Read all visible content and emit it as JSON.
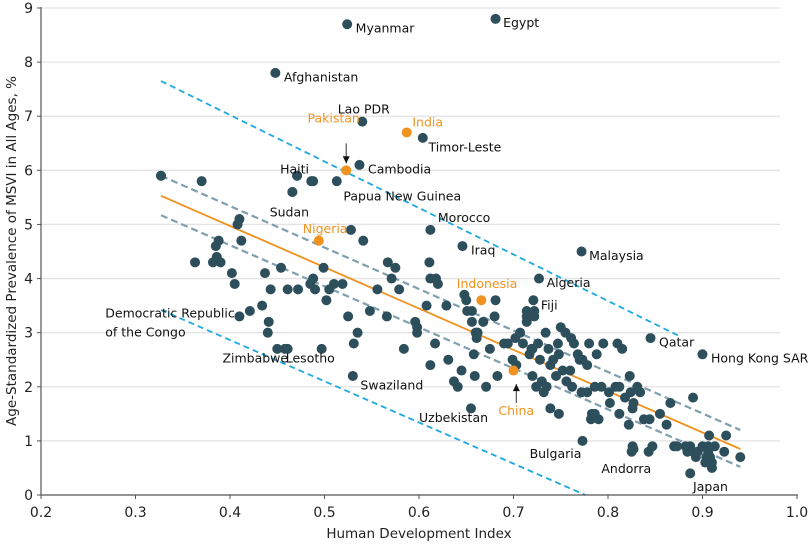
{
  "chart_data": {
    "type": "scatter",
    "title": "",
    "xlabel": "Human Development Index",
    "ylabel": "Age-Standardized Prevalence of MSVI in All Ages, %",
    "xlim": [
      0.2,
      1.0
    ],
    "ylim": [
      0,
      9
    ],
    "xticks": [
      "0.2",
      "0.3",
      "0.4",
      "0.5",
      "0.6",
      "0.7",
      "0.8",
      "0.9",
      "1.0"
    ],
    "yticks": [
      "0",
      "1",
      "2",
      "3",
      "4",
      "5",
      "6",
      "7",
      "8",
      "9"
    ],
    "grid": "horizontal",
    "colors": {
      "points": "#2d4f5c",
      "highlight": "#f0921e",
      "regression": "#f0921e",
      "confidence_band": "#7f9fae",
      "prediction_band": "#1ea8e0",
      "grid": "#e3e3e3",
      "axis": "#555555"
    },
    "regression_line": {
      "x": [
        0.327,
        0.94
      ],
      "y": [
        5.53,
        0.85
      ]
    },
    "confidence_band": {
      "upper": {
        "x": [
          0.327,
          0.94
        ],
        "y": [
          5.9,
          1.2
        ]
      },
      "lower": {
        "x": [
          0.327,
          0.94
        ],
        "y": [
          5.17,
          0.52
        ]
      }
    },
    "prediction_band": {
      "upper": {
        "x": [
          0.327,
          0.874
        ],
        "y": [
          7.65,
          2.95
        ]
      },
      "lower": {
        "x": [
          0.327,
          0.776
        ],
        "y": [
          3.42,
          0.0
        ]
      }
    },
    "labeled_points": [
      {
        "name": "Myanmar",
        "x": 0.524,
        "y": 8.7,
        "highlight": false
      },
      {
        "name": "Egypt",
        "x": 0.681,
        "y": 8.8,
        "highlight": false
      },
      {
        "name": "Afghanistan",
        "x": 0.448,
        "y": 7.8,
        "highlight": false
      },
      {
        "name": "Lao PDR",
        "x": 0.54,
        "y": 6.9,
        "highlight": false
      },
      {
        "name": "India",
        "x": 0.587,
        "y": 6.7,
        "highlight": true
      },
      {
        "name": "Timor-Leste",
        "x": 0.604,
        "y": 6.6,
        "highlight": false
      },
      {
        "name": "Pakistan",
        "x": 0.523,
        "y": 6.0,
        "highlight": true
      },
      {
        "name": "Cambodia",
        "x": 0.537,
        "y": 6.1,
        "highlight": false
      },
      {
        "name": "Haiti",
        "x": 0.471,
        "y": 5.9,
        "highlight": false
      },
      {
        "name": "Papua New Guinea",
        "x": 0.513,
        "y": 5.8,
        "highlight": false
      },
      {
        "name": "Sudan",
        "x": 0.466,
        "y": 5.6,
        "highlight": false
      },
      {
        "name": "Nigeria",
        "x": 0.494,
        "y": 4.7,
        "highlight": true
      },
      {
        "name": "Morocco",
        "x": 0.612,
        "y": 4.9,
        "highlight": false
      },
      {
        "name": "Iraq",
        "x": 0.646,
        "y": 4.6,
        "highlight": false
      },
      {
        "name": "Malaysia",
        "x": 0.772,
        "y": 4.5,
        "highlight": false
      },
      {
        "name": "Algeria",
        "x": 0.727,
        "y": 4.0,
        "highlight": false
      },
      {
        "name": "Indonesia",
        "x": 0.666,
        "y": 3.6,
        "highlight": true
      },
      {
        "name": "Fiji",
        "x": 0.721,
        "y": 3.6,
        "highlight": false
      },
      {
        "name": "Qatar",
        "x": 0.845,
        "y": 2.9,
        "highlight": false
      },
      {
        "name": "Hong Kong SAR",
        "x": 0.9,
        "y": 2.6,
        "highlight": false
      },
      {
        "name": "Democratic Republic of the Congo",
        "x": 0.327,
        "y": 5.9,
        "highlight": false
      },
      {
        "name": "Zimbabwe",
        "x": 0.458,
        "y": 2.7,
        "highlight": false
      },
      {
        "name": "Lesotho",
        "x": 0.497,
        "y": 2.7,
        "highlight": false
      },
      {
        "name": "Swaziland",
        "x": 0.53,
        "y": 2.2,
        "highlight": false
      },
      {
        "name": "Uzbekistan",
        "x": 0.655,
        "y": 1.6,
        "highlight": false
      },
      {
        "name": "China",
        "x": 0.7,
        "y": 2.3,
        "highlight": true
      },
      {
        "name": "Bulgaria",
        "x": 0.773,
        "y": 1.0,
        "highlight": false
      },
      {
        "name": "Andorra",
        "x": 0.827,
        "y": 0.85,
        "highlight": false
      },
      {
        "name": "Japan",
        "x": 0.887,
        "y": 0.4,
        "highlight": false
      }
    ],
    "label_texts": [
      {
        "text": "Myanmar",
        "class": "lbl",
        "x": 0.533,
        "y": 8.62
      },
      {
        "text": "Egypt",
        "x": 0.689,
        "y": 8.72,
        "class": "lbl"
      },
      {
        "text": "Afghanistan",
        "x": 0.457,
        "y": 7.72,
        "class": "lbl"
      },
      {
        "text": "Lao PDR",
        "x": 0.514,
        "y": 7.12,
        "class": "lbl"
      },
      {
        "text": "India",
        "x": 0.593,
        "y": 6.88,
        "class": "lbl-hi"
      },
      {
        "text": "Timor-Leste",
        "x": 0.61,
        "y": 6.42,
        "class": "lbl"
      },
      {
        "text": "Pakistan",
        "x": 0.482,
        "y": 6.96,
        "class": "lbl-hi"
      },
      {
        "text": "Cambodia",
        "x": 0.546,
        "y": 6.02,
        "class": "lbl"
      },
      {
        "text": "Haiti",
        "x": 0.453,
        "y": 6.02,
        "class": "lbl"
      },
      {
        "text": "Papua New Guinea",
        "x": 0.52,
        "y": 5.52,
        "class": "lbl"
      },
      {
        "text": "Sudan",
        "x": 0.442,
        "y": 5.22,
        "class": "lbl"
      },
      {
        "text": "Nigeria",
        "x": 0.477,
        "y": 4.92,
        "class": "lbl-hi"
      },
      {
        "text": "Morocco",
        "x": 0.62,
        "y": 5.12,
        "class": "lbl"
      },
      {
        "text": "Iraq",
        "x": 0.655,
        "y": 4.52,
        "class": "lbl"
      },
      {
        "text": "Malaysia",
        "x": 0.78,
        "y": 4.42,
        "class": "lbl"
      },
      {
        "text": "Algeria",
        "x": 0.735,
        "y": 3.92,
        "class": "lbl"
      },
      {
        "text": "Indonesia",
        "x": 0.64,
        "y": 3.9,
        "class": "lbl-hi"
      },
      {
        "text": "Fiji",
        "x": 0.729,
        "y": 3.5,
        "class": "lbl"
      },
      {
        "text": "Qatar",
        "x": 0.854,
        "y": 2.82,
        "class": "lbl"
      },
      {
        "text": "Hong Kong SAR",
        "x": 0.909,
        "y": 2.52,
        "class": "lbl"
      },
      {
        "text": "Democratic Republic",
        "x": 0.268,
        "y": 3.35,
        "class": "lbl"
      },
      {
        "text": "of the Congo",
        "x": 0.268,
        "y": 3.0,
        "class": "lbl"
      },
      {
        "text": "Zimbabwe",
        "x": 0.392,
        "y": 2.52,
        "class": "lbl"
      },
      {
        "text": "Lesotho",
        "x": 0.459,
        "y": 2.52,
        "class": "lbl"
      },
      {
        "text": "Swaziland",
        "x": 0.538,
        "y": 2.02,
        "class": "lbl"
      },
      {
        "text": "Uzbekistan",
        "x": 0.6,
        "y": 1.42,
        "class": "lbl"
      },
      {
        "text": "China",
        "x": 0.684,
        "y": 1.55,
        "class": "lbl-hi"
      },
      {
        "text": "Bulgaria",
        "x": 0.717,
        "y": 0.76,
        "class": "lbl"
      },
      {
        "text": "Andorra",
        "x": 0.793,
        "y": 0.48,
        "class": "lbl"
      },
      {
        "text": "Japan",
        "x": 0.89,
        "y": 0.15,
        "class": "lbl"
      }
    ],
    "arrows": [
      {
        "from": {
          "x": 0.523,
          "y": 6.5
        },
        "to": {
          "x": 0.523,
          "y": 6.13
        }
      },
      {
        "from": {
          "x": 0.703,
          "y": 1.7
        },
        "to": {
          "x": 0.703,
          "y": 2.05
        }
      }
    ],
    "points": [
      [
        0.327,
        5.9
      ],
      [
        0.37,
        5.8
      ],
      [
        0.41,
        5.1
      ],
      [
        0.408,
        5.0
      ],
      [
        0.412,
        4.7
      ],
      [
        0.388,
        4.7
      ],
      [
        0.385,
        4.6
      ],
      [
        0.363,
        4.3
      ],
      [
        0.382,
        4.3
      ],
      [
        0.386,
        4.4
      ],
      [
        0.39,
        4.3
      ],
      [
        0.402,
        4.1
      ],
      [
        0.405,
        3.9
      ],
      [
        0.41,
        3.3
      ],
      [
        0.421,
        3.4
      ],
      [
        0.434,
        3.5
      ],
      [
        0.441,
        3.2
      ],
      [
        0.44,
        3.0
      ],
      [
        0.45,
        2.7
      ],
      [
        0.461,
        2.7
      ],
      [
        0.443,
        3.8
      ],
      [
        0.437,
        4.1
      ],
      [
        0.454,
        4.2
      ],
      [
        0.461,
        3.8
      ],
      [
        0.472,
        3.8
      ],
      [
        0.466,
        5.6
      ],
      [
        0.471,
        5.9
      ],
      [
        0.486,
        5.8
      ],
      [
        0.488,
        5.8
      ],
      [
        0.485,
        3.9
      ],
      [
        0.488,
        4.0
      ],
      [
        0.49,
        3.8
      ],
      [
        0.499,
        4.2
      ],
      [
        0.502,
        3.6
      ],
      [
        0.505,
        3.8
      ],
      [
        0.51,
        3.9
      ],
      [
        0.519,
        3.9
      ],
      [
        0.528,
        4.9
      ],
      [
        0.541,
        4.7
      ],
      [
        0.525,
        3.3
      ],
      [
        0.531,
        2.8
      ],
      [
        0.535,
        3.0
      ],
      [
        0.548,
        3.4
      ],
      [
        0.556,
        3.8
      ],
      [
        0.567,
        4.3
      ],
      [
        0.575,
        4.2
      ],
      [
        0.571,
        4.0
      ],
      [
        0.566,
        3.3
      ],
      [
        0.579,
        3.8
      ],
      [
        0.584,
        2.7
      ],
      [
        0.598,
        3.0
      ],
      [
        0.598,
        3.1
      ],
      [
        0.608,
        3.5
      ],
      [
        0.611,
        4.3
      ],
      [
        0.612,
        4.0
      ],
      [
        0.618,
        4.0
      ],
      [
        0.617,
        2.8
      ],
      [
        0.612,
        2.4
      ],
      [
        0.596,
        3.2
      ],
      [
        0.62,
        3.9
      ],
      [
        0.629,
        3.5
      ],
      [
        0.631,
        2.5
      ],
      [
        0.637,
        2.1
      ],
      [
        0.641,
        2.0
      ],
      [
        0.645,
        2.3
      ],
      [
        0.648,
        3.7
      ],
      [
        0.65,
        3.6
      ],
      [
        0.651,
        3.4
      ],
      [
        0.656,
        3.4
      ],
      [
        0.656,
        3.2
      ],
      [
        0.66,
        3.0
      ],
      [
        0.661,
        2.9
      ],
      [
        0.658,
        2.6
      ],
      [
        0.659,
        2.2
      ],
      [
        0.668,
        3.2
      ],
      [
        0.662,
        3.0
      ],
      [
        0.671,
        2.0
      ],
      [
        0.675,
        2.7
      ],
      [
        0.68,
        3.3
      ],
      [
        0.681,
        3.6
      ],
      [
        0.683,
        2.2
      ],
      [
        0.69,
        2.8
      ],
      [
        0.694,
        2.8
      ],
      [
        0.699,
        2.5
      ],
      [
        0.702,
        2.9
      ],
      [
        0.703,
        2.4
      ],
      [
        0.707,
        3.0
      ],
      [
        0.71,
        2.8
      ],
      [
        0.714,
        3.2
      ],
      [
        0.714,
        3.4
      ],
      [
        0.714,
        3.3
      ],
      [
        0.717,
        2.6
      ],
      [
        0.719,
        2.7
      ],
      [
        0.72,
        2.7
      ],
      [
        0.72,
        2.2
      ],
      [
        0.722,
        3.4
      ],
      [
        0.722,
        3.3
      ],
      [
        0.724,
        2.0
      ],
      [
        0.726,
        2.8
      ],
      [
        0.728,
        2.5
      ],
      [
        0.73,
        2.1
      ],
      [
        0.732,
        1.9
      ],
      [
        0.734,
        3.0
      ],
      [
        0.735,
        2.0
      ],
      [
        0.737,
        2.7
      ],
      [
        0.739,
        1.6
      ],
      [
        0.739,
        2.4
      ],
      [
        0.742,
        2.5
      ],
      [
        0.745,
        2.2
      ],
      [
        0.747,
        2.8
      ],
      [
        0.748,
        2.6
      ],
      [
        0.748,
        1.5
      ],
      [
        0.75,
        3.1
      ],
      [
        0.752,
        2.3
      ],
      [
        0.755,
        3.0
      ],
      [
        0.756,
        2.1
      ],
      [
        0.76,
        2.3
      ],
      [
        0.761,
        2.9
      ],
      [
        0.762,
        2.0
      ],
      [
        0.764,
        2.8
      ],
      [
        0.768,
        2.6
      ],
      [
        0.77,
        2.5
      ],
      [
        0.772,
        1.9
      ],
      [
        0.773,
        2.5
      ],
      [
        0.778,
        1.9
      ],
      [
        0.778,
        2.4
      ],
      [
        0.783,
        1.5
      ],
      [
        0.786,
        2.0
      ],
      [
        0.788,
        2.6
      ],
      [
        0.79,
        1.4
      ],
      [
        0.793,
        2.0
      ],
      [
        0.78,
        2.8
      ],
      [
        0.795,
        2.8
      ],
      [
        0.81,
        2.8
      ],
      [
        0.815,
        2.7
      ],
      [
        0.812,
        1.5
      ],
      [
        0.812,
        2.0
      ],
      [
        0.808,
        2.0
      ],
      [
        0.823,
        2.2
      ],
      [
        0.818,
        1.8
      ],
      [
        0.824,
        1.9
      ],
      [
        0.826,
        1.6
      ],
      [
        0.822,
        1.3
      ],
      [
        0.827,
        1.7
      ],
      [
        0.831,
        2.0
      ],
      [
        0.834,
        1.9
      ],
      [
        0.838,
        1.4
      ],
      [
        0.855,
        1.5
      ],
      [
        0.862,
        1.3
      ],
      [
        0.866,
        1.7
      ],
      [
        0.89,
        1.8
      ],
      [
        0.907,
        1.1
      ],
      [
        0.925,
        1.1
      ],
      [
        0.94,
        0.7
      ],
      [
        0.826,
        0.9
      ],
      [
        0.825,
        0.8
      ],
      [
        0.843,
        0.8
      ],
      [
        0.847,
        0.9
      ],
      [
        0.87,
        0.9
      ],
      [
        0.873,
        0.9
      ],
      [
        0.882,
        0.9
      ],
      [
        0.884,
        0.8
      ],
      [
        0.887,
        0.9
      ],
      [
        0.89,
        0.8
      ],
      [
        0.893,
        0.7
      ],
      [
        0.895,
        0.8
      ],
      [
        0.9,
        0.9
      ],
      [
        0.903,
        0.6
      ],
      [
        0.904,
        0.7
      ],
      [
        0.906,
        0.8
      ],
      [
        0.906,
        0.9
      ],
      [
        0.908,
        0.7
      ],
      [
        0.91,
        0.5
      ],
      [
        0.91,
        0.6
      ],
      [
        0.913,
        0.9
      ],
      [
        0.923,
        0.8
      ],
      [
        0.844,
        1.4
      ],
      [
        0.802,
        1.7
      ],
      [
        0.786,
        1.5
      ],
      [
        0.782,
        1.4
      ],
      [
        0.801,
        1.9
      ]
    ]
  }
}
